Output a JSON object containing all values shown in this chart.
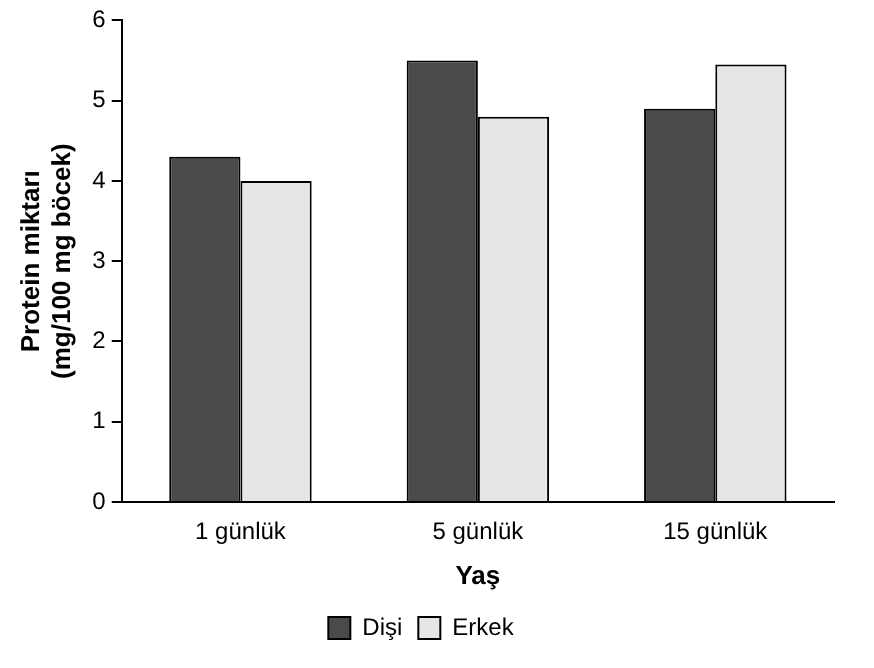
{
  "chart_data": {
    "type": "bar",
    "xlabel": "Yaş",
    "ylabel": "Protein miktarı (mg/100 mg böcek)",
    "categories": [
      "1 günlük",
      "5 günlük",
      "15 günlük"
    ],
    "series": [
      {
        "name": "Dişi",
        "color": "#4a4a4a",
        "values": [
          4.3,
          5.5,
          4.9
        ]
      },
      {
        "name": "Erkek",
        "color": "#e6e6e6",
        "values": [
          4.0,
          4.8,
          5.45
        ]
      }
    ],
    "ylim": [
      0,
      6
    ],
    "yticks": [
      0,
      1,
      2,
      3,
      4,
      5,
      6
    ],
    "grid": false,
    "legend": "bottom"
  }
}
